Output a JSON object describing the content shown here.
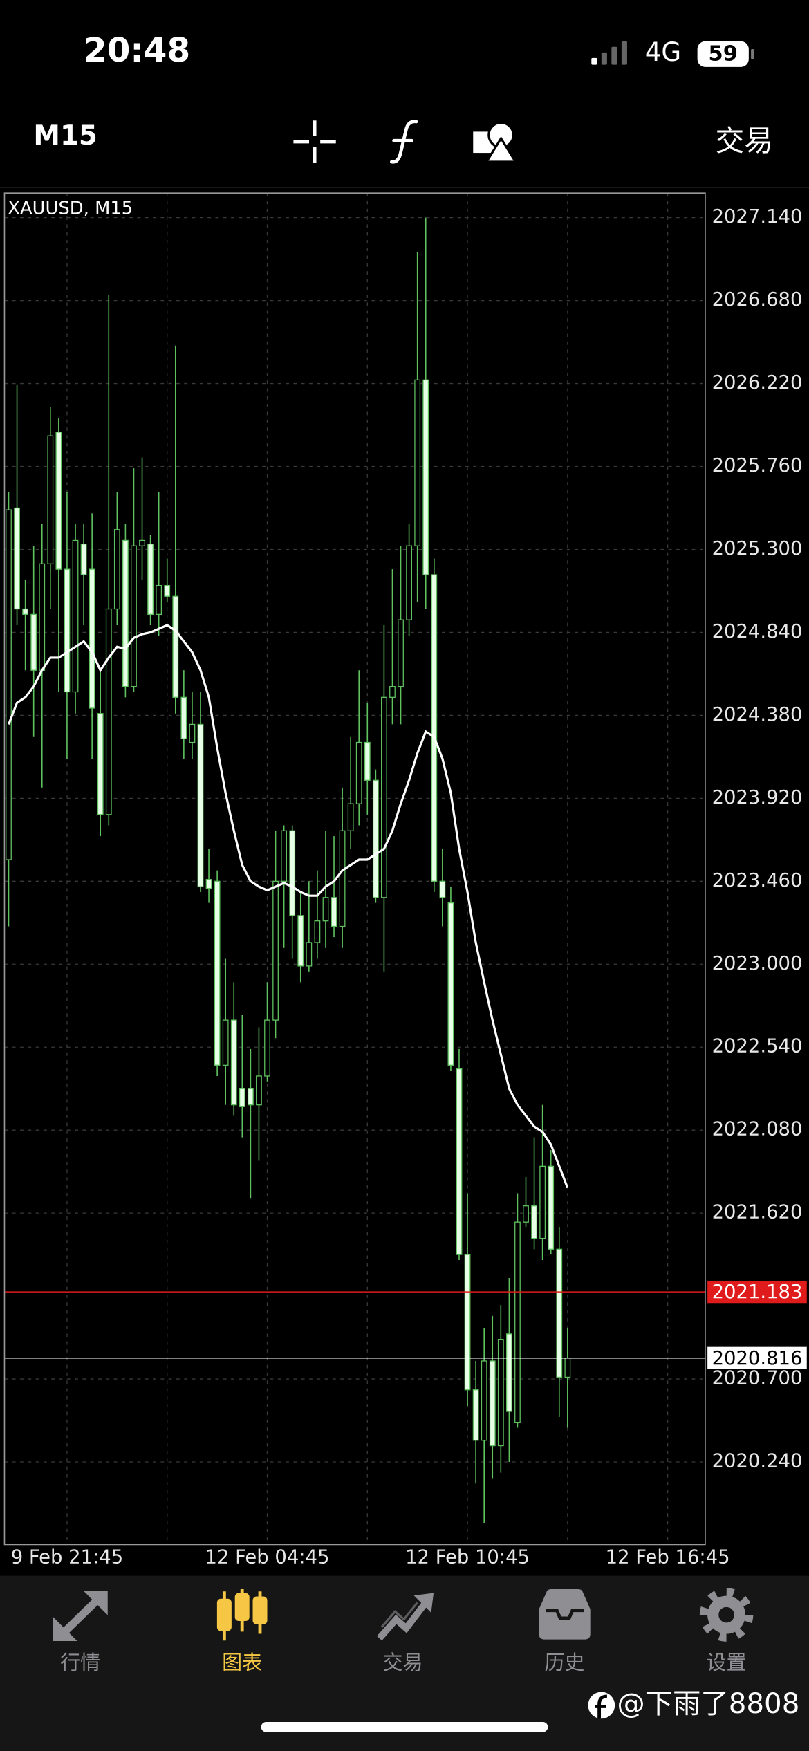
{
  "status_bar": {
    "time": "20:48",
    "network": "4G",
    "battery": "59"
  },
  "toolbar": {
    "timeframe": "M15",
    "trade": "交易"
  },
  "chart_data": {
    "type": "candlestick",
    "title": "XAUUSD, M15",
    "categories": [
      null,
      null,
      null,
      null,
      null,
      null,
      null,
      "9 Feb 21:45",
      null,
      null,
      null,
      null,
      null,
      null,
      null,
      null,
      null,
      null,
      null,
      null,
      null,
      null,
      null,
      null,
      null,
      null,
      null,
      null,
      null,
      null,
      null,
      "12 Feb 04:45",
      null,
      null,
      null,
      null,
      null,
      null,
      null,
      null,
      null,
      null,
      null,
      null,
      null,
      null,
      null,
      null,
      null,
      null,
      null,
      null,
      null,
      null,
      null,
      "12 Feb 10:45",
      null,
      null,
      null,
      null,
      null,
      null,
      null,
      null,
      null,
      null,
      null,
      null,
      null,
      null,
      null,
      null,
      null,
      null,
      null,
      null,
      null,
      null,
      null,
      "12 Feb 16:45",
      null,
      null,
      null,
      null
    ],
    "open": [
      2023.58,
      2025.53,
      2024.97,
      2024.94,
      2024.63,
      2025.22,
      2025.95,
      2025.19,
      2024.51,
      2025.33,
      2025.19,
      2024.39,
      2023.83,
      2024.97,
      2025.35,
      2024.54,
      2025.32,
      2025.33,
      2024.94,
      2025.1,
      2025.04,
      2024.48,
      2024.23,
      2024.33,
      2023.47,
      2023.46,
      2022.44,
      2022.69,
      2022.31,
      2022.31,
      2022.22,
      2022.38,
      2022.69,
      2023.46,
      2023.74,
      2023.27,
      2022.99,
      2023.12,
      2023.24,
      2023.37,
      2023.21,
      2023.74,
      2023.89,
      2024.23,
      2024.02,
      2023.37,
      2024.48,
      2024.54,
      2024.91,
      2025.32,
      2026.24,
      2025.16,
      2023.46,
      2023.34,
      2022.42,
      2021.39,
      2020.64,
      2020.36,
      2020.8,
      2020.33,
      2020.95,
      2020.46,
      2021.57,
      2021.66,
      2021.48,
      2021.88,
      2021.42,
      2020.71,
      null,
      null,
      null,
      null,
      null,
      null,
      null,
      null,
      null,
      null,
      null,
      null,
      null,
      null,
      null,
      null
    ],
    "high": [
      2025.62,
      2026.21,
      2025.13,
      2025.32,
      2025.44,
      2026.09,
      2026.03,
      2025.62,
      2025.44,
      2025.44,
      2025.5,
      2024.63,
      2026.71,
      2025.62,
      2025.44,
      2025.75,
      2025.81,
      2025.38,
      2025.62,
      2025.25,
      2026.43,
      2024.63,
      2024.51,
      2024.51,
      2023.64,
      2023.52,
      2023.03,
      2022.9,
      2022.72,
      2022.53,
      2022.65,
      2022.9,
      2023.74,
      2023.77,
      2023.77,
      2023.4,
      2023.46,
      2023.52,
      2023.74,
      2023.71,
      2023.98,
      2024.26,
      2024.63,
      2024.45,
      2024.08,
      2024.88,
      2025.19,
      2025.32,
      2025.44,
      2026.95,
      2027.14,
      2025.25,
      2023.64,
      2023.43,
      2022.53,
      2021.73,
      2020.8,
      2020.98,
      2021.05,
      2021.11,
      2021.26,
      2021.73,
      2021.82,
      2022.04,
      2022.22,
      2021.97,
      2021.54,
      2020.98,
      null,
      null,
      null,
      null,
      null,
      null,
      null,
      null,
      null,
      null,
      null,
      null,
      null,
      null,
      null,
      null
    ],
    "low": [
      2023.21,
      2024.88,
      2024.63,
      2024.26,
      2023.98,
      2024.97,
      2024.51,
      2024.14,
      2024.39,
      2024.88,
      2024.14,
      2023.71,
      2023.77,
      2024.88,
      2024.48,
      2024.51,
      2025.13,
      2024.88,
      2024.82,
      2025.01,
      2024.39,
      2024.14,
      2024.14,
      2023.4,
      2023.34,
      2022.38,
      2022.22,
      2022.16,
      2022.04,
      2021.7,
      2021.91,
      2022.35,
      2022.59,
      2023.09,
      2023.03,
      2022.9,
      2022.96,
      2023.03,
      2023.09,
      2023.15,
      2023.09,
      2023.64,
      2023.77,
      2023.83,
      2023.34,
      2022.96,
      2024.33,
      2024.33,
      2024.82,
      2025.01,
      2024.97,
      2023.4,
      2023.21,
      2022.41,
      2021.36,
      2020.55,
      2020.12,
      2019.9,
      2020.15,
      2020.18,
      2020.24,
      2020.43,
      2021.54,
      2021.42,
      2021.36,
      2021.39,
      2020.49,
      2020.43,
      null,
      null,
      null,
      null,
      null,
      null,
      null,
      null,
      null,
      null,
      null,
      null,
      null,
      null,
      null,
      null
    ],
    "close": [
      2025.52,
      2024.97,
      2024.94,
      2024.63,
      2025.22,
      2025.93,
      2025.19,
      2024.51,
      2025.35,
      2025.16,
      2024.42,
      2023.83,
      2024.97,
      2025.41,
      2024.54,
      2025.32,
      2025.35,
      2024.94,
      2025.1,
      2025.04,
      2024.48,
      2024.25,
      2024.33,
      2023.43,
      2023.42,
      2022.44,
      2022.69,
      2022.22,
      2022.21,
      2022.22,
      2022.38,
      2022.69,
      2023.46,
      2023.74,
      2023.27,
      2022.99,
      2023.12,
      2023.24,
      2023.37,
      2023.21,
      2023.74,
      2023.89,
      2024.23,
      2024.02,
      2023.37,
      2024.48,
      2024.54,
      2024.91,
      2025.32,
      2026.24,
      2025.16,
      2023.46,
      2023.37,
      2022.44,
      2021.39,
      2020.64,
      2020.36,
      2020.8,
      2020.33,
      2020.92,
      2020.52,
      2021.57,
      2021.66,
      2021.48,
      2021.88,
      2021.42,
      2020.71,
      2020.816,
      null,
      null,
      null,
      null,
      null,
      null,
      null,
      null,
      null,
      null,
      null,
      null,
      null,
      null,
      null,
      null
    ],
    "ma": [
      2024.33,
      2024.45,
      2024.48,
      2024.54,
      2024.63,
      2024.7,
      2024.7,
      2024.73,
      2024.76,
      2024.79,
      2024.73,
      2024.63,
      2024.7,
      2024.76,
      2024.75,
      2024.81,
      2024.83,
      2024.84,
      2024.86,
      2024.88,
      2024.85,
      2024.79,
      2024.73,
      2024.63,
      2024.48,
      2024.2,
      2023.95,
      2023.74,
      2023.55,
      2023.46,
      2023.43,
      2023.41,
      2023.43,
      2023.45,
      2023.43,
      2023.4,
      2023.38,
      2023.38,
      2023.43,
      2023.46,
      2023.52,
      2023.55,
      2023.58,
      2023.58,
      2023.61,
      2023.64,
      2023.74,
      2023.89,
      2024.02,
      2024.17,
      2024.29,
      2024.26,
      2024.14,
      2023.95,
      2023.64,
      2023.4,
      2023.12,
      2022.9,
      2022.69,
      2022.5,
      2022.31,
      2022.22,
      2022.16,
      2022.1,
      2022.07,
      2022.0,
      2021.88,
      2021.76,
      null,
      null,
      null,
      null,
      null,
      null,
      null,
      null,
      null,
      null,
      null,
      null,
      null,
      null,
      null,
      null
    ],
    "up_color": "#5fc25f",
    "down_color": "#e6ffe6",
    "ma_color": "#ffffff",
    "ylim": [
      2019.782,
      2027.276
    ],
    "yticks": [
      {
        "value": 2027.14,
        "label": "2027.140"
      },
      {
        "value": 2026.68,
        "label": "2026.680"
      },
      {
        "value": 2026.22,
        "label": "2026.220"
      },
      {
        "value": 2025.76,
        "label": "2025.760"
      },
      {
        "value": 2025.3,
        "label": "2025.300"
      },
      {
        "value": 2024.84,
        "label": "2024.840"
      },
      {
        "value": 2024.38,
        "label": "2024.380"
      },
      {
        "value": 2023.92,
        "label": "2023.920"
      },
      {
        "value": 2023.46,
        "label": "2023.460"
      },
      {
        "value": 2023.0,
        "label": "2023.000"
      },
      {
        "value": 2022.54,
        "label": "2022.540"
      },
      {
        "value": 2022.08,
        "label": "2022.080"
      },
      {
        "value": 2021.62,
        "label": "2021.620"
      },
      {
        "value": 2020.7,
        "label": "2020.700"
      },
      {
        "value": 2020.24,
        "label": "2020.240"
      }
    ],
    "grid": true,
    "price_lines": [
      {
        "value": 2021.183,
        "color": "#e01b1b"
      },
      {
        "value": 2020.816,
        "color": "#ffffff"
      }
    ]
  },
  "tab_bar": {
    "tabs": [
      "行情",
      "图表",
      "交易",
      "历史",
      "设置"
    ],
    "active": 1,
    "active_color": "#f6c744",
    "inactive_color": "#8e8e93"
  },
  "watermark": "@下雨了8808"
}
